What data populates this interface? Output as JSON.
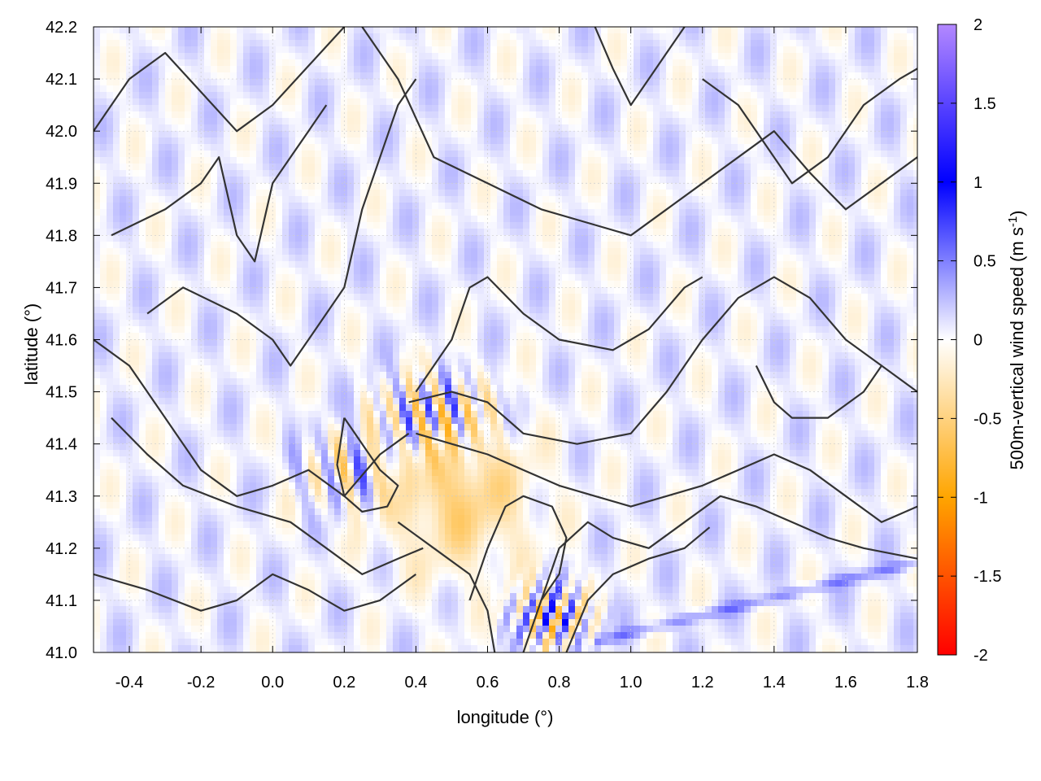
{
  "chart_data": {
    "type": "heatmap",
    "title": "",
    "xlabel": "longitude (°)",
    "ylabel": "latitude (°)",
    "xlim": [
      -0.5,
      1.8
    ],
    "ylim": [
      41.0,
      42.2
    ],
    "x_ticks": [
      -0.4,
      -0.2,
      0.0,
      0.2,
      0.4,
      0.6,
      0.8,
      1.0,
      1.2,
      1.4,
      1.6,
      1.8
    ],
    "x_tick_labels": [
      "-0.4",
      "-0.2",
      "0.0",
      "0.2",
      "0.4",
      "0.6",
      "0.8",
      "1.0",
      "1.2",
      "1.4",
      "1.6",
      "1.8"
    ],
    "y_ticks": [
      41.0,
      41.1,
      41.2,
      41.3,
      41.4,
      41.5,
      41.6,
      41.7,
      41.8,
      41.9,
      42.0,
      42.1,
      42.2
    ],
    "y_tick_labels": [
      "41.0",
      "41.1",
      "41.2",
      "41.3",
      "41.4",
      "41.5",
      "41.6",
      "41.7",
      "41.8",
      "41.9",
      "42.0",
      "42.1",
      "42.2"
    ],
    "grid": true,
    "colorbar": {
      "label_main": "500m-vertical wind speed (m s",
      "label_sup": "-1",
      "label_close": ")",
      "range": [
        -2,
        2
      ],
      "ticks": [
        2,
        1.5,
        1,
        0.5,
        0,
        -0.5,
        -1,
        -1.5,
        -2
      ],
      "tick_labels": [
        "2",
        "1.5",
        "1",
        "0.5",
        "0",
        "-0.5",
        "-1",
        "-1.5",
        "-2"
      ],
      "colors": {
        "2": "#b388ff",
        "1": "#0000ff",
        "0": "#ffffff",
        "-1": "#ffa500",
        "-2": "#ff0000"
      }
    },
    "contour_color": "#333333",
    "notes": "Field is a spatially varying vertical wind speed overlaid with terrain-like contour lines; individual grid values are not labeled."
  }
}
